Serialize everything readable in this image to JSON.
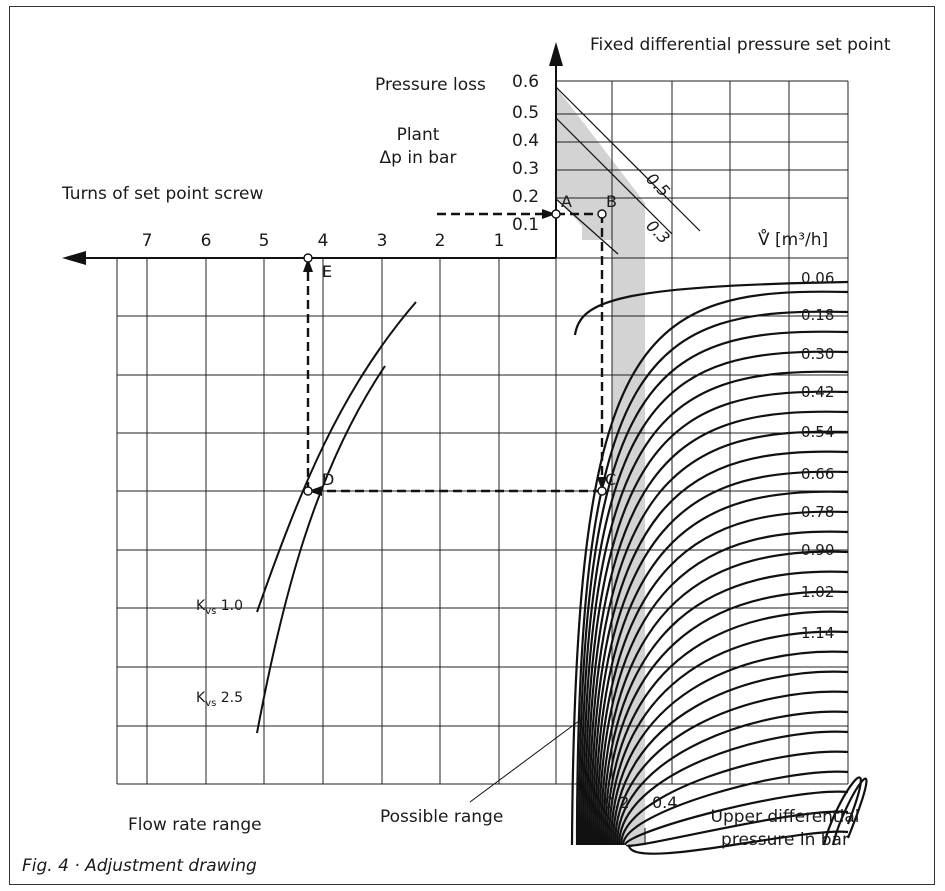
{
  "labels": {
    "fixed_dp": "Fixed differential pressure set point",
    "pressure_loss": "Pressure loss",
    "plant_line1": "Plant",
    "plant_line2": "Δp in bar",
    "turns": "Turns of set point screw",
    "flow_unit": "V̊ [m³/h]",
    "flow_rate_range": "Flow rate range",
    "possible_range": "Possible range",
    "upper_dp_line1": "Upper differential",
    "upper_dp_line2": "pressure in bar",
    "kvs1": "K",
    "kvs1_sub": "vs",
    "kvs1_val": " 1.0",
    "kvs2": "K",
    "kvs2_sub": "vs",
    "kvs2_val": " 2.5"
  },
  "pressure_loss_ticks": [
    "0.6",
    "0.5",
    "0.4",
    "0.3",
    "0.2",
    "0.1"
  ],
  "turns_ticks": [
    "7",
    "6",
    "5",
    "4",
    "3",
    "2",
    "1"
  ],
  "diag_labels": [
    "0.5",
    "0.3"
  ],
  "flow_values": [
    "0.06",
    "0.18",
    "0.30",
    "0.42",
    "0.54",
    "0.66",
    "0.78",
    "0.90",
    "1.02",
    "1.14"
  ],
  "bottom_ticks": [
    "0.2",
    "0.4"
  ],
  "points": [
    "A",
    "B",
    "C",
    "D",
    "E"
  ],
  "caption": "Fig. 4 · Adjustment drawing"
}
